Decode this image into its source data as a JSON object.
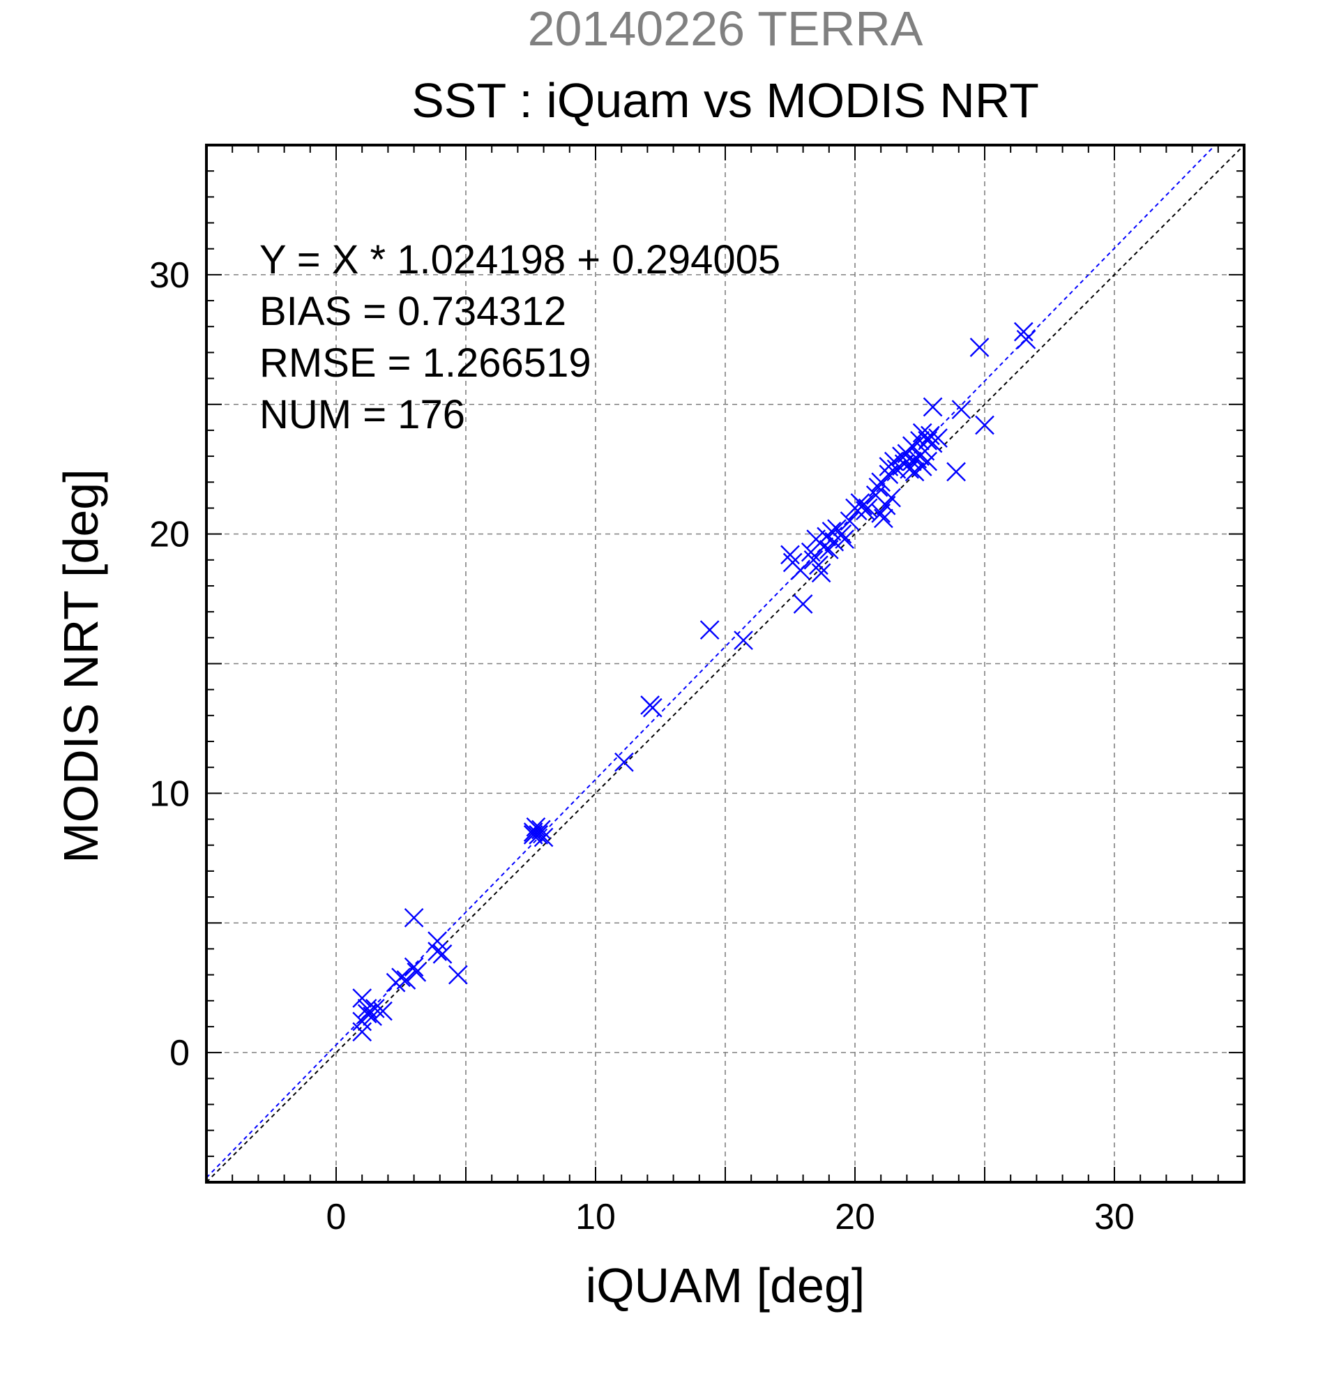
{
  "chart_data": {
    "type": "scatter",
    "title": "20140226 TERRA",
    "subtitle": "SST : iQuam vs MODIS NRT",
    "xlabel": "iQUAM [deg]",
    "ylabel": "MODIS NRT [deg]",
    "xlim": [
      -5,
      35
    ],
    "ylim": [
      -5,
      35
    ],
    "xticks": [
      0,
      10,
      20,
      30
    ],
    "yticks": [
      0,
      10,
      20,
      30
    ],
    "grid": true,
    "colors": {
      "points": "#0000ff",
      "fit_line": "#0000ff",
      "identity_line": "#000000",
      "title": "#808080"
    },
    "annotations": [
      "Y = X * 1.024198 + 0.294005",
      "BIAS = 0.734312",
      "RMSE = 1.266519",
      "NUM = 176"
    ],
    "fit": {
      "slope": 1.024198,
      "intercept": 0.294005
    },
    "marker": "x",
    "points": [
      [
        1.0,
        2.1
      ],
      [
        1.2,
        1.7
      ],
      [
        1.0,
        1.2
      ],
      [
        1.2,
        1.5
      ],
      [
        1.0,
        0.8
      ],
      [
        1.4,
        1.4
      ],
      [
        1.5,
        1.7
      ],
      [
        1.8,
        1.6
      ],
      [
        2.3,
        2.7
      ],
      [
        2.5,
        2.9
      ],
      [
        2.7,
        2.8
      ],
      [
        3.0,
        3.3
      ],
      [
        3.1,
        3.1
      ],
      [
        3.0,
        5.2
      ],
      [
        3.9,
        4.3
      ],
      [
        3.9,
        3.9
      ],
      [
        4.1,
        3.8
      ],
      [
        4.7,
        3.0
      ],
      [
        7.6,
        8.5
      ],
      [
        7.7,
        8.7
      ],
      [
        7.8,
        8.4
      ],
      [
        7.9,
        8.6
      ],
      [
        8.0,
        8.3
      ],
      [
        7.6,
        8.4
      ],
      [
        11.1,
        11.2
      ],
      [
        12.1,
        13.4
      ],
      [
        12.2,
        13.3
      ],
      [
        14.4,
        16.3
      ],
      [
        15.7,
        15.9
      ],
      [
        17.5,
        19.2
      ],
      [
        17.6,
        18.9
      ],
      [
        17.9,
        18.6
      ],
      [
        18.0,
        17.3
      ],
      [
        18.3,
        19.3
      ],
      [
        18.4,
        19.0
      ],
      [
        18.5,
        19.8
      ],
      [
        18.6,
        18.8
      ],
      [
        18.7,
        18.5
      ],
      [
        18.8,
        19.5
      ],
      [
        18.9,
        19.9
      ],
      [
        19.0,
        19.4
      ],
      [
        19.1,
        20.1
      ],
      [
        19.2,
        19.7
      ],
      [
        19.3,
        20.2
      ],
      [
        19.5,
        20.0
      ],
      [
        19.6,
        19.8
      ],
      [
        19.8,
        20.5
      ],
      [
        20.0,
        21.0
      ],
      [
        20.1,
        20.9
      ],
      [
        20.2,
        21.2
      ],
      [
        20.3,
        21.1
      ],
      [
        20.4,
        20.9
      ],
      [
        20.5,
        21.0
      ],
      [
        20.8,
        21.5
      ],
      [
        20.9,
        21.8
      ],
      [
        21.0,
        20.8
      ],
      [
        21.0,
        22.0
      ],
      [
        21.1,
        20.6
      ],
      [
        21.2,
        21.1
      ],
      [
        21.3,
        22.3
      ],
      [
        21.3,
        22.6
      ],
      [
        21.4,
        21.4
      ],
      [
        21.5,
        22.8
      ],
      [
        21.6,
        22.5
      ],
      [
        21.8,
        23.0
      ],
      [
        21.9,
        22.7
      ],
      [
        22.0,
        23.1
      ],
      [
        22.1,
        22.5
      ],
      [
        22.2,
        22.8
      ],
      [
        22.2,
        23.4
      ],
      [
        22.3,
        22.4
      ],
      [
        22.4,
        22.9
      ],
      [
        22.5,
        23.6
      ],
      [
        22.5,
        23.0
      ],
      [
        22.6,
        22.6
      ],
      [
        22.6,
        23.9
      ],
      [
        22.7,
        23.2
      ],
      [
        22.8,
        23.6
      ],
      [
        22.8,
        22.8
      ],
      [
        22.9,
        23.8
      ],
      [
        23.0,
        23.5
      ],
      [
        23.0,
        24.9
      ],
      [
        23.2,
        23.7
      ],
      [
        23.9,
        22.4
      ],
      [
        24.1,
        24.8
      ],
      [
        24.8,
        27.2
      ],
      [
        25.0,
        24.2
      ],
      [
        26.5,
        27.8
      ],
      [
        26.6,
        27.5
      ]
    ]
  }
}
